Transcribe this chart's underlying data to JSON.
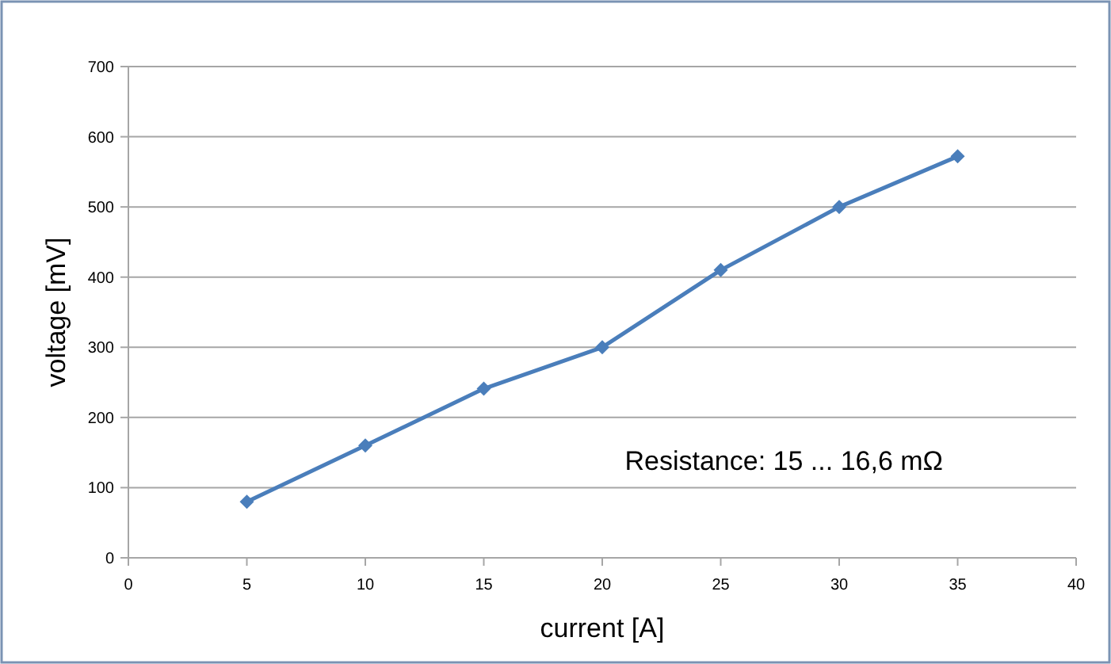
{
  "chart_data": {
    "type": "line",
    "xlabel": "current [A]",
    "ylabel": "voltage [mV]",
    "x": [
      5,
      10,
      15,
      20,
      25,
      30,
      35
    ],
    "series": [
      {
        "color": "#4a7ebb",
        "values": [
          80,
          160,
          241,
          300,
          410,
          500,
          572
        ]
      }
    ],
    "xlim": [
      0,
      40
    ],
    "xticks": [
      0,
      5,
      10,
      15,
      20,
      25,
      30,
      35,
      40
    ],
    "ylim": [
      0,
      700
    ],
    "yticks": [
      0,
      100,
      200,
      300,
      400,
      500,
      600,
      700
    ],
    "grid": "y",
    "marker": "diamond",
    "line_style": "solid",
    "annotations": [
      "Resistance: 15 ... 16,6 mΩ"
    ]
  }
}
